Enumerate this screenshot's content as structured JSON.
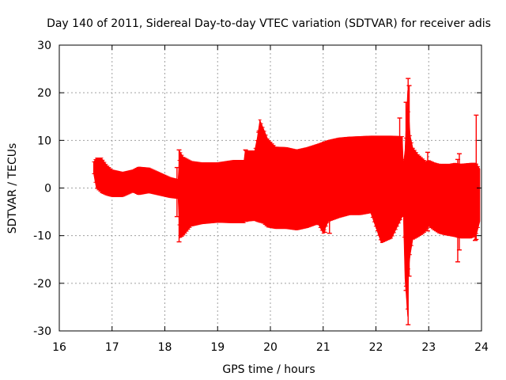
{
  "chart_data": {
    "type": "error-bar",
    "title": "Day 140 of 2011, Sidereal Day-to-day VTEC variation (SDTVAR) for receiver adis",
    "xlabel": "GPS time / hours",
    "ylabel": "SDTVAR / TECUs",
    "xlim": [
      16,
      24
    ],
    "ylim": [
      -30,
      30
    ],
    "x_ticks": [
      "16",
      "17",
      "18",
      "19",
      "20",
      "21",
      "22",
      "23",
      "24"
    ],
    "y_ticks": [
      "-30",
      "-20",
      "-10",
      "0",
      "10",
      "20",
      "30"
    ],
    "grid": true,
    "series": [
      {
        "name": "SDTVAR",
        "color": "#ff0000",
        "envelope": {
          "x": [
            16.65,
            16.7,
            16.8,
            16.9,
            17.0,
            17.2,
            17.4,
            17.5,
            17.7,
            17.9,
            18.1,
            18.25,
            18.28,
            18.35,
            18.5,
            18.7,
            19.0,
            19.3,
            19.5,
            19.52,
            19.7,
            19.75,
            19.8,
            19.85,
            19.95,
            20.1,
            20.3,
            20.5,
            20.7,
            20.9,
            21.0,
            21.1,
            21.3,
            21.5,
            21.7,
            21.9,
            22.1,
            22.3,
            22.5,
            22.52,
            22.55,
            22.6,
            22.62,
            22.65,
            22.7,
            22.8,
            22.9,
            22.95,
            23.0,
            23.1,
            23.2,
            23.3,
            23.4,
            23.5,
            23.6,
            23.7,
            23.8,
            23.9,
            23.97
          ],
          "upper": [
            5.5,
            6.3,
            6.3,
            4.8,
            3.8,
            3.3,
            3.8,
            4.4,
            4.2,
            3.2,
            2.2,
            1.8,
            7.8,
            6.5,
            5.6,
            5.3,
            5.3,
            5.8,
            5.8,
            7.8,
            7.8,
            10.5,
            14.3,
            13.0,
            10.3,
            8.6,
            8.5,
            8.0,
            8.5,
            9.2,
            9.6,
            10.0,
            10.5,
            10.7,
            10.8,
            10.9,
            10.9,
            10.9,
            10.8,
            5.0,
            8.0,
            20.5,
            16.0,
            11.0,
            8.5,
            7.0,
            6.0,
            5.5,
            5.8,
            5.3,
            5.0,
            5.0,
            5.0,
            5.2,
            5.0,
            5.1,
            5.2,
            5.2,
            4.0
          ],
          "lower": [
            3.0,
            0.0,
            -1.0,
            -1.5,
            -1.8,
            -1.8,
            -0.8,
            -1.4,
            -1.0,
            -1.5,
            -2.0,
            -2.2,
            -10.5,
            -10.0,
            -8.0,
            -7.5,
            -7.2,
            -7.3,
            -7.3,
            -7.0,
            -6.8,
            -7.0,
            -7.2,
            -7.3,
            -8.2,
            -8.5,
            -8.5,
            -8.8,
            -8.3,
            -7.5,
            -9.5,
            -7.0,
            -6.2,
            -5.6,
            -5.6,
            -5.2,
            -11.5,
            -10.5,
            -6.0,
            -6.0,
            -19.0,
            -27.0,
            -17.0,
            -14.0,
            -10.8,
            -10.2,
            -9.5,
            -9.0,
            -8.0,
            -8.8,
            -9.5,
            -9.8,
            -10.0,
            -10.2,
            -10.5,
            -10.5,
            -10.5,
            -10.0,
            -7.0
          ]
        },
        "spikes": [
          {
            "x": 18.27,
            "low": -11.3,
            "high": 8.0
          },
          {
            "x": 18.23,
            "low": -6.0,
            "high": 4.3
          },
          {
            "x": 19.53,
            "low": -7.0,
            "high": 8.0
          },
          {
            "x": 19.78,
            "low": -7.0,
            "high": 11.7
          },
          {
            "x": 21.03,
            "low": -9.3,
            "high": 9.6
          },
          {
            "x": 21.12,
            "low": -9.5,
            "high": 9.7
          },
          {
            "x": 22.45,
            "low": -5.5,
            "high": 14.7
          },
          {
            "x": 22.57,
            "low": -21.5,
            "high": 18.0
          },
          {
            "x": 22.61,
            "low": -28.7,
            "high": 23.0
          },
          {
            "x": 22.63,
            "low": -18.5,
            "high": 21.5
          },
          {
            "x": 22.98,
            "low": -9.0,
            "high": 7.5
          },
          {
            "x": 23.55,
            "low": -15.5,
            "high": 6.0
          },
          {
            "x": 23.58,
            "low": -13.0,
            "high": 7.2
          },
          {
            "x": 23.88,
            "low": -11.0,
            "high": 5.0
          },
          {
            "x": 23.9,
            "low": -10.8,
            "high": 15.3
          }
        ]
      }
    ]
  }
}
